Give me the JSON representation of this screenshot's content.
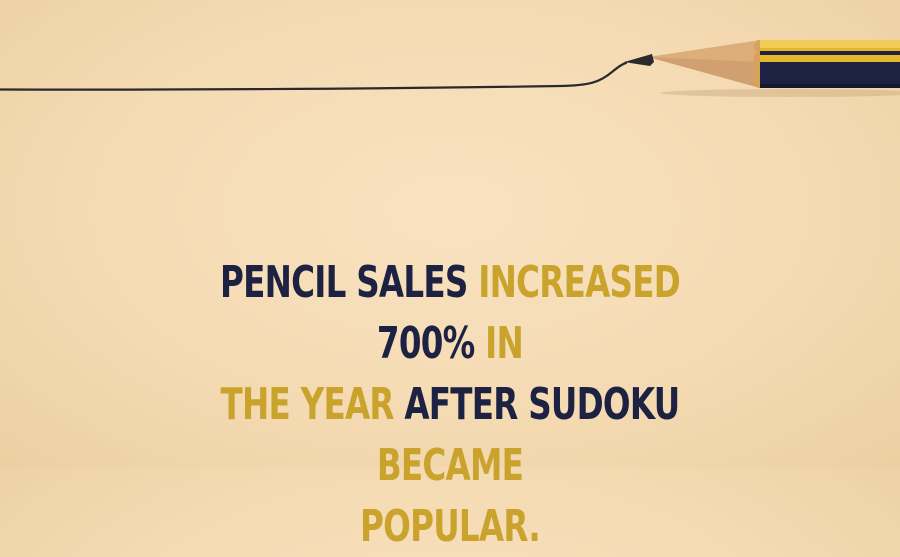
{
  "colors": {
    "background": "#f6ddb7",
    "navy": "#1d2242",
    "gold": "#c9a32c",
    "pencil_yellow": "#e5b52a",
    "pencil_wood": "#dcae7a",
    "graphite": "#2a2a2e"
  },
  "illustration": {
    "icon": "pencil-drawing-line-icon"
  },
  "fact": {
    "segments": [
      {
        "text": "Pencil sales",
        "tone": "navy"
      },
      {
        "text": "increased",
        "tone": "gold"
      },
      {
        "text": "700%",
        "tone": "navy"
      },
      {
        "text": "in",
        "tone": "gold"
      },
      {
        "text": "the year",
        "tone": "gold"
      },
      {
        "text": "after sudoku",
        "tone": "navy"
      },
      {
        "text": "became",
        "tone": "gold"
      },
      {
        "text": "popular.",
        "tone": "gold"
      }
    ]
  }
}
